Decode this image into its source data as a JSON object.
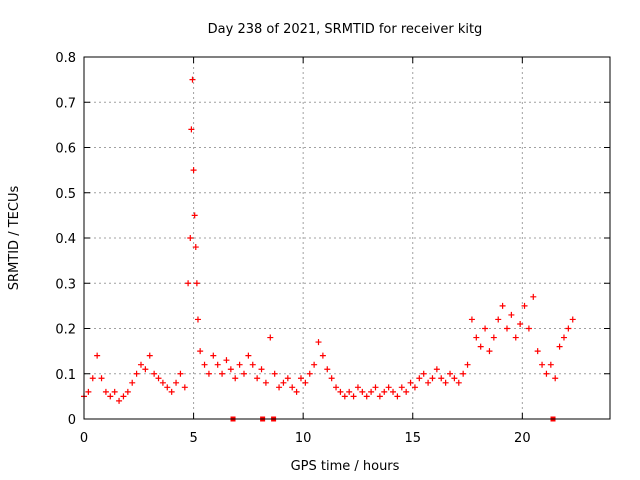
{
  "chart_data": {
    "type": "scatter",
    "title": "Day 238 of 2021, SRMTID for receiver kitg",
    "xlabel": "GPS time / hours",
    "ylabel": "SRMTID / TECUs",
    "xlim": [
      0,
      24
    ],
    "ylim": [
      0,
      0.8
    ],
    "x_ticks": [
      0,
      5,
      10,
      15,
      20
    ],
    "x_tick_labels": [
      "0",
      "5",
      "10",
      "15",
      "20"
    ],
    "y_ticks": [
      0,
      0.1,
      0.2,
      0.3,
      0.4,
      0.5,
      0.6,
      0.7,
      0.8
    ],
    "y_tick_labels": [
      "0",
      "0.1",
      "0.2",
      "0.3",
      "0.4",
      "0.5",
      "0.6",
      "0.7",
      "0.8"
    ],
    "grid": true,
    "marker": "plus",
    "series_color": "#ff0000",
    "series": [
      {
        "name": "SRMTID",
        "x": [
          0.0,
          0.2,
          0.4,
          0.6,
          0.8,
          1.0,
          1.2,
          1.4,
          1.6,
          1.8,
          2.0,
          2.2,
          2.4,
          2.6,
          2.8,
          3.0,
          3.2,
          3.4,
          3.6,
          3.8,
          4.0,
          4.2,
          4.4,
          4.6,
          4.75,
          4.85,
          4.9,
          4.95,
          5.0,
          5.05,
          5.1,
          5.15,
          5.2,
          5.3,
          5.5,
          5.7,
          5.9,
          6.1,
          6.3,
          6.5,
          6.7,
          6.9,
          7.1,
          7.3,
          7.5,
          7.7,
          7.9,
          8.1,
          8.3,
          8.5,
          8.7,
          8.9,
          9.1,
          9.3,
          9.5,
          9.7,
          9.9,
          10.1,
          10.3,
          10.5,
          10.7,
          10.9,
          11.1,
          11.3,
          11.5,
          11.7,
          11.9,
          12.1,
          12.3,
          12.5,
          12.7,
          12.9,
          13.1,
          13.3,
          13.5,
          13.7,
          13.9,
          14.1,
          14.3,
          14.5,
          14.7,
          14.9,
          15.1,
          15.3,
          15.5,
          15.7,
          15.9,
          16.1,
          16.3,
          16.5,
          16.7,
          16.9,
          17.1,
          17.3,
          17.5,
          17.7,
          17.9,
          18.1,
          18.3,
          18.5,
          18.7,
          18.9,
          19.1,
          19.3,
          19.5,
          19.7,
          19.9,
          20.1,
          20.3,
          20.5,
          20.7,
          20.9,
          21.1,
          21.3,
          21.5,
          21.7,
          21.9,
          22.1,
          22.3
        ],
        "y": [
          0.05,
          0.06,
          0.09,
          0.14,
          0.09,
          0.06,
          0.05,
          0.06,
          0.04,
          0.05,
          0.06,
          0.08,
          0.1,
          0.12,
          0.11,
          0.14,
          0.1,
          0.09,
          0.08,
          0.07,
          0.06,
          0.08,
          0.1,
          0.07,
          0.3,
          0.4,
          0.64,
          0.75,
          0.55,
          0.45,
          0.38,
          0.3,
          0.22,
          0.15,
          0.12,
          0.1,
          0.14,
          0.12,
          0.1,
          0.13,
          0.11,
          0.09,
          0.12,
          0.1,
          0.14,
          0.12,
          0.09,
          0.11,
          0.08,
          0.18,
          0.1,
          0.07,
          0.08,
          0.09,
          0.07,
          0.06,
          0.09,
          0.08,
          0.1,
          0.12,
          0.17,
          0.14,
          0.11,
          0.09,
          0.07,
          0.06,
          0.05,
          0.06,
          0.05,
          0.07,
          0.06,
          0.05,
          0.06,
          0.07,
          0.05,
          0.06,
          0.07,
          0.06,
          0.05,
          0.07,
          0.06,
          0.08,
          0.07,
          0.09,
          0.1,
          0.08,
          0.09,
          0.11,
          0.09,
          0.08,
          0.1,
          0.09,
          0.08,
          0.1,
          0.12,
          0.22,
          0.18,
          0.16,
          0.2,
          0.15,
          0.18,
          0.22,
          0.25,
          0.2,
          0.23,
          0.18,
          0.21,
          0.25,
          0.2,
          0.27,
          0.15,
          0.12,
          0.1,
          0.12,
          0.09,
          0.16,
          0.18,
          0.2,
          0.22
        ]
      }
    ],
    "zero_points_x": [
      6.8,
      8.15,
      8.65,
      21.4
    ]
  }
}
